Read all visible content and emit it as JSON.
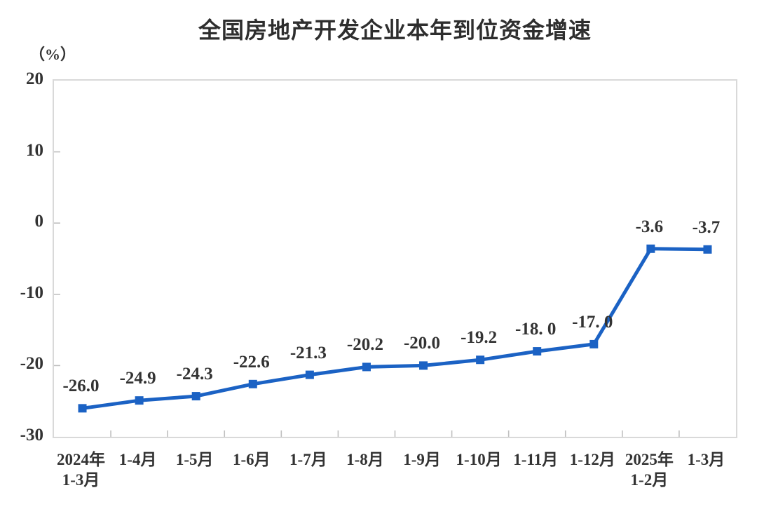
{
  "title": "全国房地产开发企业本年到位资金增速",
  "unit_label": "（%）",
  "colors": {
    "line": "#1b62c4",
    "text": "#333333",
    "plot_border": "#d9d9d9",
    "tick": "#bfbfbf",
    "background": "#ffffff"
  },
  "chart_data": {
    "type": "line",
    "title": "全国房地产开发企业本年到位资金增速",
    "ylabel": "（%）",
    "categories": [
      "2024年\n1-3月",
      "1-4月",
      "1-5月",
      "1-6月",
      "1-7月",
      "1-8月",
      "1-9月",
      "1-10月",
      "1-11月",
      "1-12月",
      "2025年\n1-2月",
      "1-3月"
    ],
    "values": [
      -26.0,
      -24.9,
      -24.3,
      -22.6,
      -21.3,
      -20.2,
      -20.0,
      -19.2,
      -18.0,
      -17.0,
      -3.6,
      -3.7
    ],
    "point_labels": [
      "-26.0",
      "-24.9",
      "-24.3",
      "-22.6",
      "-21.3",
      "-20.2",
      "-20.0",
      "-19.2",
      "-18. 0",
      "-17. 0",
      "-3.6",
      "-3.7"
    ],
    "ylim": [
      -30,
      20
    ],
    "yticks": [
      20,
      10,
      0,
      -10,
      -20,
      -30
    ],
    "grid": false,
    "legend": false,
    "line_color": "#1b62c4",
    "marker": "square"
  }
}
